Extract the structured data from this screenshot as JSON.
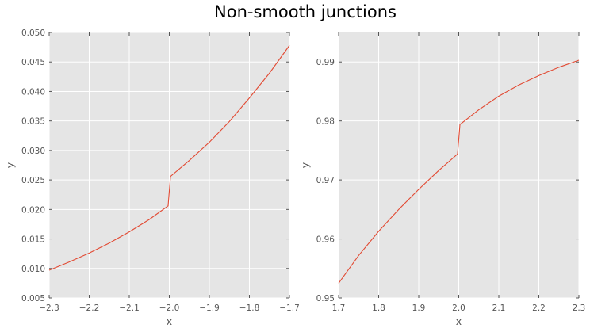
{
  "figure": {
    "title": "Non-smooth junctions"
  },
  "chart_data": [
    {
      "type": "line",
      "title": "",
      "xlabel": "x",
      "ylabel": "y",
      "xlim": [
        -2.3,
        -1.7
      ],
      "ylim": [
        0.005,
        0.05
      ],
      "xticks": [
        -2.3,
        -2.2,
        -2.1,
        -2.0,
        -1.9,
        -1.8,
        -1.7
      ],
      "xtick_labels": [
        "−2.3",
        "−2.2",
        "−2.1",
        "−2.0",
        "−1.9",
        "−1.8",
        "−1.7"
      ],
      "yticks": [
        0.005,
        0.01,
        0.015,
        0.02,
        0.025,
        0.03,
        0.035,
        0.04,
        0.045,
        0.05
      ],
      "ytick_labels": [
        "0.005",
        "0.010",
        "0.015",
        "0.020",
        "0.025",
        "0.030",
        "0.035",
        "0.040",
        "0.045",
        "0.050"
      ],
      "grid": true,
      "series": [
        {
          "color": "#e24a33",
          "x": [
            -2.3,
            -2.25,
            -2.2,
            -2.15,
            -2.1,
            -2.05,
            -2.003,
            -1.997,
            -1.95,
            -1.9,
            -1.85,
            -1.8,
            -1.75,
            -1.7
          ],
          "y": [
            0.0097,
            0.0111,
            0.0126,
            0.0143,
            0.0162,
            0.0183,
            0.0206,
            0.0256,
            0.0283,
            0.0314,
            0.0349,
            0.0389,
            0.0431,
            0.0478
          ]
        }
      ]
    },
    {
      "type": "line",
      "title": "",
      "xlabel": "x",
      "ylabel": "y",
      "xlim": [
        1.7,
        2.3
      ],
      "ylim": [
        0.95,
        0.995
      ],
      "xticks": [
        1.7,
        1.8,
        1.9,
        2.0,
        2.1,
        2.2,
        2.3
      ],
      "xtick_labels": [
        "1.7",
        "1.8",
        "1.9",
        "2.0",
        "2.1",
        "2.2",
        "2.3"
      ],
      "yticks": [
        0.95,
        0.96,
        0.97,
        0.98,
        0.99
      ],
      "ytick_labels": [
        "0.95",
        "0.96",
        "0.97",
        "0.98",
        "0.99"
      ],
      "grid": true,
      "series": [
        {
          "color": "#e24a33",
          "x": [
            1.7,
            1.75,
            1.8,
            1.85,
            1.9,
            1.95,
            1.997,
            2.003,
            2.05,
            2.1,
            2.15,
            2.2,
            2.25,
            2.3
          ],
          "y": [
            0.9525,
            0.9572,
            0.9613,
            0.965,
            0.9684,
            0.9716,
            0.9744,
            0.9794,
            0.9819,
            0.9842,
            0.9861,
            0.9877,
            0.9891,
            0.9903
          ]
        }
      ]
    }
  ]
}
